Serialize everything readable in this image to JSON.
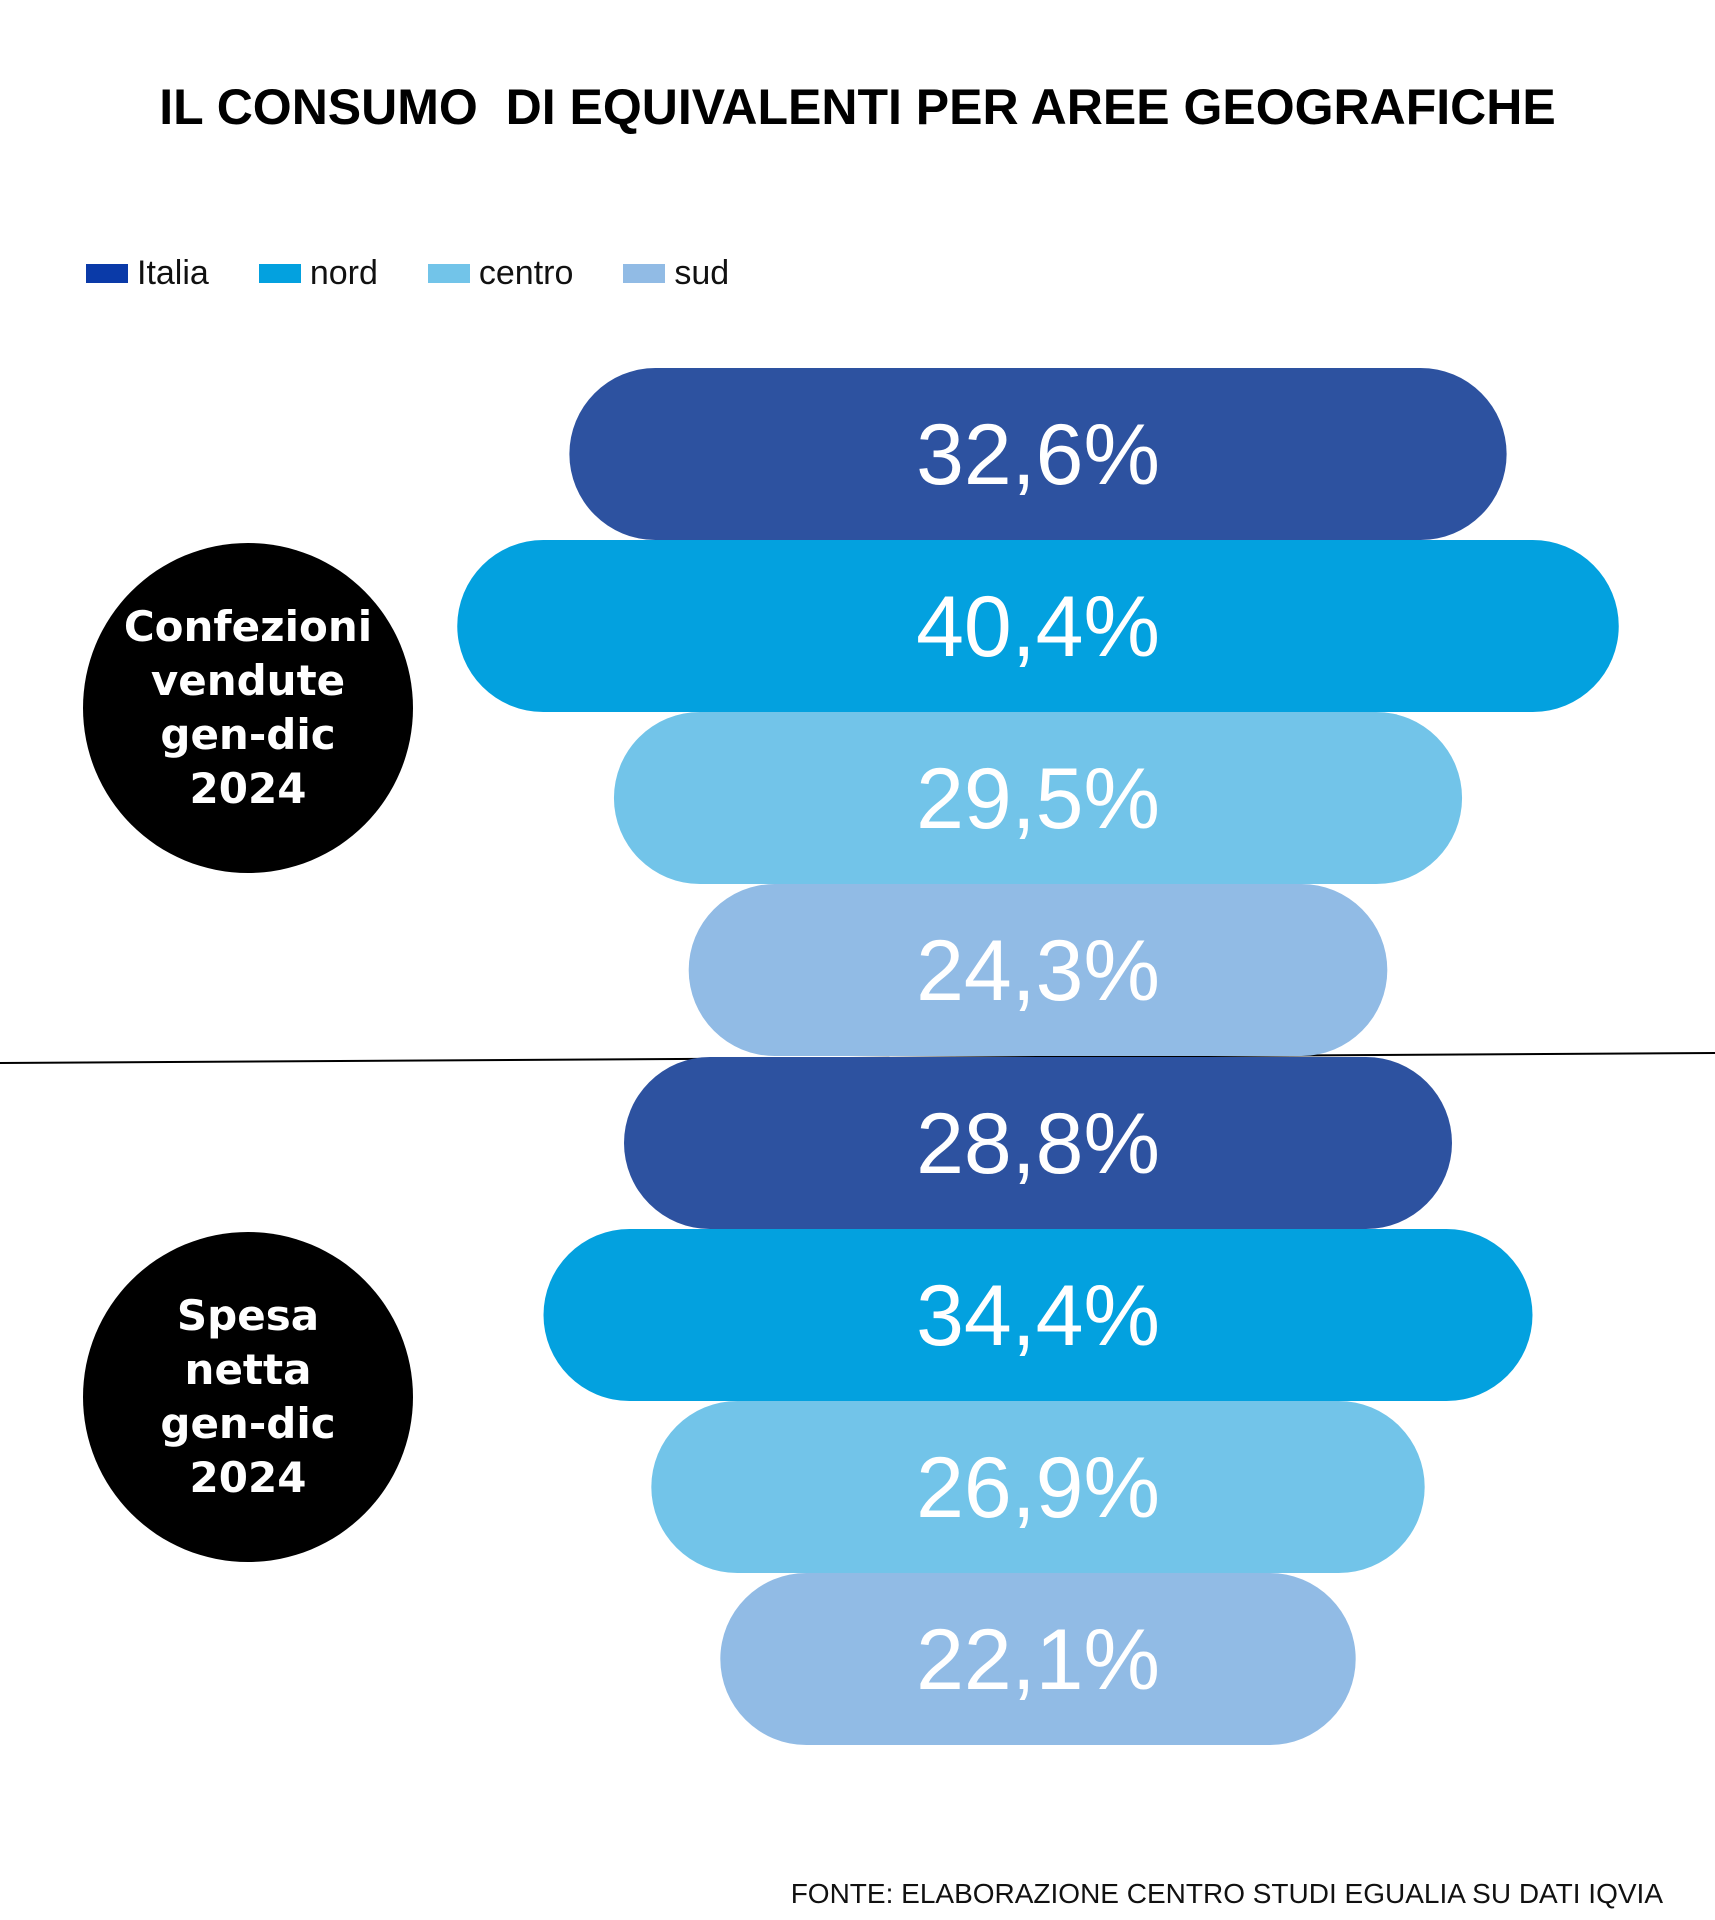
{
  "title": "IL CONSUMO  DI EQUIVALENTI PER AREE GEOGRAFICHE",
  "legend": [
    {
      "label": "Italia",
      "color": "#0a3aa8"
    },
    {
      "label": "nord",
      "color": "#03a1df"
    },
    {
      "label": "centro",
      "color": "#72c4e9"
    },
    {
      "label": "sud",
      "color": "#91bbe5"
    }
  ],
  "groups": [
    {
      "label": "Confezioni\nvendute\ngen-dic\n2024"
    },
    {
      "label": "Spesa\nnetta\ngen-dic\n2024"
    }
  ],
  "chart_data": {
    "type": "bar",
    "title": "IL CONSUMO  DI EQUIVALENTI PER AREE GEOGRAFICHE",
    "unit": "%",
    "categories": [
      "Confezioni vendute gen-dic 2024",
      "Spesa netta gen-dic 2024"
    ],
    "series": [
      {
        "name": "Italia",
        "values": [
          32.6,
          28.8
        ],
        "labels": [
          "32,6%",
          "28,8%"
        ],
        "color": "#2d52a0"
      },
      {
        "name": "nord",
        "values": [
          40.4,
          34.4
        ],
        "labels": [
          "40,4%",
          "34,4%"
        ],
        "color": "#03a1df"
      },
      {
        "name": "centro",
        "values": [
          29.5,
          26.9
        ],
        "labels": [
          "29,5%",
          "26,9%"
        ],
        "color": "#72c4e9"
      },
      {
        "name": "sud",
        "values": [
          24.3,
          22.1
        ],
        "labels": [
          "24,3%",
          "22,1%"
        ],
        "color": "#91bbe5"
      }
    ]
  },
  "footnote": "FONTE: ELABORAZIONE CENTRO STUDI EGUALIA SU DATI IQVIA"
}
